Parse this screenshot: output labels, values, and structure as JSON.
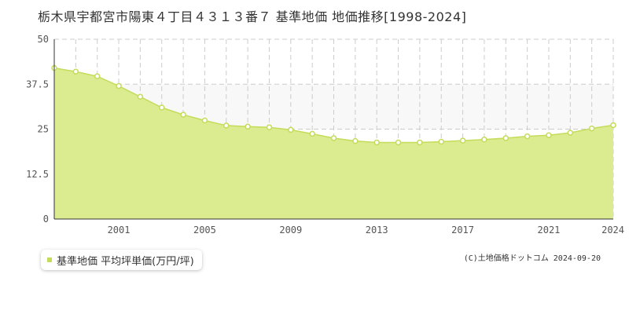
{
  "title": "栃木県宇都宮市陽東４丁目４３１３番７ 基準地価 地価推移[1998-2024]",
  "colors": {
    "area_fill": "#dbeb8f",
    "line": "#c3dc5a",
    "marker_fill": "#ffffff",
    "marker_stroke": "#c3dc5a",
    "grid": "#cccccc",
    "axis": "#333333",
    "legend_swatch": "#c3dc5a",
    "background_band": "#f8f8f8"
  },
  "legend": {
    "label": "基準地価 平均坪単価(万円/坪)",
    "placement": "bottom-left"
  },
  "credit": "(C)土地価格ドットコム 2024-09-20",
  "chart_data": {
    "type": "area",
    "title": "",
    "xlabel": "",
    "ylabel": "",
    "xlim": [
      1998,
      2024
    ],
    "ylim": [
      0,
      50
    ],
    "y_ticks": [
      "0",
      "12.5",
      "25",
      "37.5",
      "50"
    ],
    "x_ticks": [
      "2001",
      "2005",
      "2009",
      "2013",
      "2017",
      "2021",
      "2024"
    ],
    "grid": true,
    "series": [
      {
        "name": "基準地価 平均坪単価(万円/坪)",
        "x": [
          1998,
          1999,
          2000,
          2001,
          2002,
          2003,
          2004,
          2005,
          2006,
          2007,
          2008,
          2009,
          2010,
          2011,
          2012,
          2013,
          2014,
          2015,
          2016,
          2017,
          2018,
          2019,
          2020,
          2021,
          2022,
          2023,
          2024
        ],
        "values": [
          42.0,
          41.0,
          39.7,
          37.0,
          34.0,
          31.0,
          29.0,
          27.4,
          26.0,
          25.7,
          25.5,
          24.8,
          23.7,
          22.5,
          21.7,
          21.3,
          21.3,
          21.3,
          21.5,
          21.8,
          22.1,
          22.5,
          23.0,
          23.3,
          24.0,
          25.2,
          26.1
        ]
      }
    ]
  }
}
